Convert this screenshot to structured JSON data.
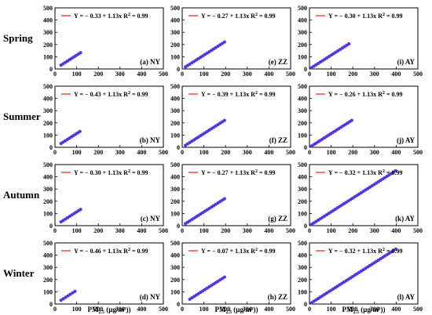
{
  "chart_data": {
    "type": "scatter",
    "row_labels": [
      "Spring",
      "Summer",
      "Autumn",
      "Winter"
    ],
    "x_ticks": [
      0,
      100,
      200,
      300,
      400,
      500
    ],
    "y_ticks": [
      0,
      100,
      200,
      300,
      400,
      500
    ],
    "xlim": [
      0,
      500
    ],
    "ylim": [
      0,
      500
    ],
    "xlabel_main": "PM",
    "xlabel_sub": "2.5",
    "xlabel_units": " (μg/m³))",
    "fit_color": "#ff2a2a",
    "point_color": "#3c3ce0",
    "point_edge": "#8a2be2",
    "panels": [
      {
        "row": 0,
        "col": 0,
        "label": "(a) NY",
        "eq": "Y = − 0.33 + 1.13x",
        "r2": "0.99",
        "x_range": [
          28,
          118
        ]
      },
      {
        "row": 1,
        "col": 0,
        "label": "(b) NY",
        "eq": "Y = − 0.43 + 1.13x",
        "r2": "0.99",
        "x_range": [
          28,
          115
        ]
      },
      {
        "row": 2,
        "col": 0,
        "label": "(c) NY",
        "eq": "Y = − 0.30 + 1.13x",
        "r2": "0.99",
        "x_range": [
          28,
          118
        ]
      },
      {
        "row": 3,
        "col": 0,
        "label": "(d) NY",
        "eq": "Y = − 0.46 + 1.13x",
        "r2": "0.99",
        "x_range": [
          28,
          92
        ]
      },
      {
        "row": 0,
        "col": 1,
        "label": "(e) ZZ",
        "eq": "Y = − 0.27 + 1.13x",
        "r2": "0.99",
        "x_range": [
          15,
          195
        ]
      },
      {
        "row": 1,
        "col": 1,
        "label": "(f) ZZ",
        "eq": "Y = − 0.39 + 1.13x",
        "r2": "0.99",
        "x_range": [
          15,
          195
        ]
      },
      {
        "row": 2,
        "col": 1,
        "label": "(g) ZZ",
        "eq": "Y = − 0.27 + 1.13x",
        "r2": "0.99",
        "x_range": [
          15,
          195
        ]
      },
      {
        "row": 3,
        "col": 1,
        "label": "(h) ZZ",
        "eq": "Y = − 0.07 + 1.13x",
        "r2": "0.99",
        "x_range": [
          35,
          195
        ]
      },
      {
        "row": 0,
        "col": 2,
        "label": "(i) AY",
        "eq": "Y = − 0.30 + 1.13x",
        "r2": "0.99",
        "x_range": [
          10,
          182
        ]
      },
      {
        "row": 1,
        "col": 2,
        "label": "(j) AY",
        "eq": "Y = − 0.26 + 1.13x",
        "r2": "0.99",
        "x_range": [
          10,
          195
        ]
      },
      {
        "row": 2,
        "col": 2,
        "label": "(k) AY",
        "eq": "Y = − 0.32 + 1.13x",
        "r2": "0.99",
        "x_range": [
          10,
          398
        ]
      },
      {
        "row": 3,
        "col": 2,
        "label": "(l) AY",
        "eq": "Y = − 0.32 + 1.13x",
        "r2": "0.99",
        "x_range": [
          10,
          398
        ]
      }
    ]
  }
}
